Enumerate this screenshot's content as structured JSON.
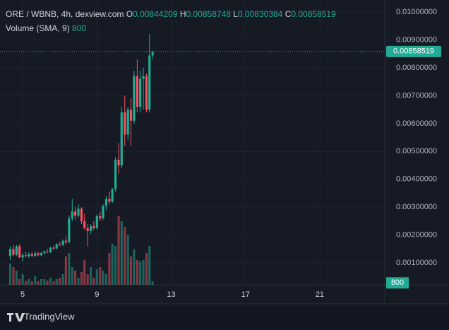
{
  "chart_data": {
    "type": "candlestick",
    "title": "ORE / WBNB, 4h, dexview.com",
    "ohlc_labels": [
      "O",
      "H",
      "L",
      "C"
    ],
    "volume_label": "Volume (SMA, 9)",
    "volume_sma": 800,
    "x": [
      4.33,
      4.5,
      4.67,
      4.83,
      5,
      5.17,
      5.33,
      5.5,
      5.67,
      5.83,
      6,
      6.17,
      6.33,
      6.5,
      6.67,
      6.83,
      7,
      7.17,
      7.33,
      7.5,
      7.67,
      7.83,
      8,
      8.17,
      8.33,
      8.5,
      8.67,
      8.83,
      9,
      9.17,
      9.33,
      9.5,
      9.67,
      9.83,
      10,
      10.17,
      10.33,
      10.5,
      10.67,
      10.83,
      11,
      11.17,
      11.33,
      11.5,
      11.67,
      11.83,
      12
    ],
    "open": [
      0.00125,
      0.0015,
      0.0013,
      0.0016,
      0.0012,
      0.00128,
      0.00125,
      0.00132,
      0.00126,
      0.00135,
      0.00128,
      0.00136,
      0.00142,
      0.0014,
      0.00155,
      0.00152,
      0.00168,
      0.00165,
      0.0018,
      0.00175,
      0.0026,
      0.00285,
      0.0027,
      0.00295,
      0.0025,
      0.00225,
      0.00215,
      0.00232,
      0.00225,
      0.00268,
      0.0026,
      0.00305,
      0.0033,
      0.0032,
      0.00365,
      0.0047,
      0.0045,
      0.0064,
      0.0056,
      0.0065,
      0.0061,
      0.0077,
      0.0066,
      0.0076,
      0.0077,
      0.0065,
      0.00844209
    ],
    "high": [
      0.0016,
      0.00165,
      0.00165,
      0.00168,
      0.00135,
      0.0014,
      0.00138,
      0.0014,
      0.00142,
      0.0014,
      0.0014,
      0.00145,
      0.0015,
      0.00158,
      0.00162,
      0.0017,
      0.00175,
      0.00185,
      0.00195,
      0.0027,
      0.0033,
      0.003,
      0.0031,
      0.003,
      0.00275,
      0.0024,
      0.0024,
      0.0025,
      0.00275,
      0.00285,
      0.0031,
      0.0034,
      0.00355,
      0.0037,
      0.0048,
      0.0053,
      0.0066,
      0.007,
      0.0066,
      0.0069,
      0.0079,
      0.0083,
      0.0079,
      0.008,
      0.0078,
      0.0092,
      0.00858748
    ],
    "low": [
      0.0011,
      0.00125,
      0.00125,
      0.00118,
      0.00105,
      0.0012,
      0.00118,
      0.00122,
      0.0012,
      0.00125,
      0.00124,
      0.0013,
      0.00135,
      0.00136,
      0.00148,
      0.0015,
      0.0016,
      0.0016,
      0.00168,
      0.0017,
      0.0025,
      0.00255,
      0.00262,
      0.0024,
      0.0022,
      0.0016,
      0.00205,
      0.00218,
      0.0022,
      0.0025,
      0.00255,
      0.0029,
      0.0031,
      0.00315,
      0.00355,
      0.0042,
      0.0044,
      0.0052,
      0.0054,
      0.0052,
      0.006,
      0.0064,
      0.0064,
      0.0065,
      0.0064,
      0.0064,
      0.00830384
    ],
    "close": [
      0.0015,
      0.0013,
      0.0016,
      0.0012,
      0.00128,
      0.00125,
      0.00132,
      0.00126,
      0.00135,
      0.00128,
      0.00136,
      0.00142,
      0.0014,
      0.00155,
      0.00152,
      0.00168,
      0.00165,
      0.0018,
      0.00175,
      0.0026,
      0.00285,
      0.0027,
      0.00295,
      0.0025,
      0.00225,
      0.00215,
      0.00232,
      0.00225,
      0.00268,
      0.0026,
      0.00305,
      0.0033,
      0.0032,
      0.00365,
      0.0047,
      0.0045,
      0.0064,
      0.0056,
      0.0065,
      0.0061,
      0.0077,
      0.0066,
      0.0076,
      0.0077,
      0.0065,
      0.00844209,
      0.00858519
    ],
    "volume": [
      9000,
      7500,
      6000,
      2400,
      4500,
      1500,
      2400,
      1500,
      3600,
      1500,
      2400,
      2400,
      1800,
      3000,
      1500,
      2400,
      3000,
      4500,
      12000,
      13500,
      7500,
      6000,
      3000,
      5400,
      10500,
      4500,
      7500,
      3000,
      6600,
      7500,
      6000,
      4500,
      13500,
      17400,
      16500,
      29100,
      27000,
      24600,
      21000,
      12000,
      15000,
      10500,
      9900,
      10500,
      13500,
      16500,
      1500
    ],
    "volume_lim": [
      0,
      30000
    ],
    "up_color": "#22ab94",
    "down_color": "#f7525f",
    "xlim": [
      3.78,
      24.5
    ],
    "xticks": [
      5,
      9,
      13,
      17,
      21
    ],
    "ylim": [
      0.00022,
      0.01043
    ],
    "yticks": [
      {
        "value": 0.001,
        "label": "0.00100000"
      },
      {
        "value": 0.002,
        "label": "0.00200000"
      },
      {
        "value": 0.003,
        "label": "0.00300000"
      },
      {
        "value": 0.004,
        "label": "0.00400000"
      },
      {
        "value": 0.005,
        "label": "0.00500000"
      },
      {
        "value": 0.006,
        "label": "0.00600000"
      },
      {
        "value": 0.007,
        "label": "0.00700000"
      },
      {
        "value": 0.008,
        "label": "0.00800000"
      },
      {
        "value": 0.009,
        "label": "0.00900000"
      },
      {
        "value": 0.01,
        "label": "0.01000000"
      }
    ],
    "grid": true
  },
  "branding": "TradingView"
}
